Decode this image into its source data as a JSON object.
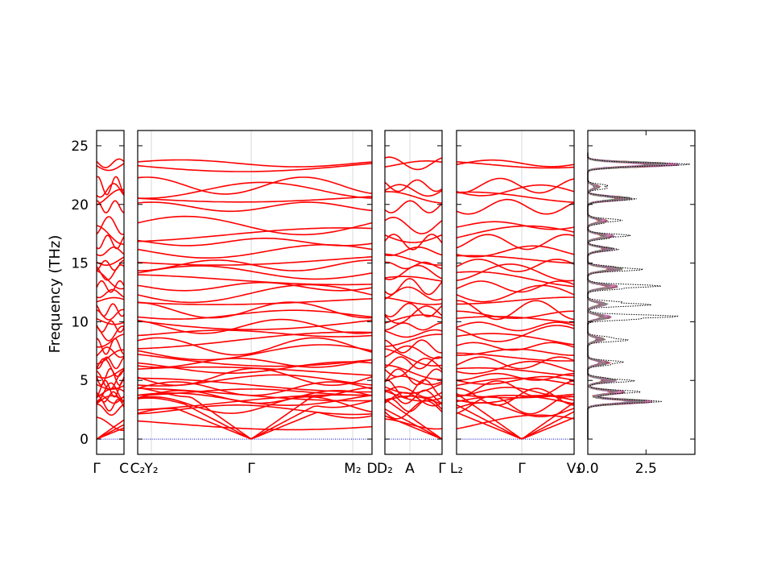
{
  "chart_data": {
    "type": "line",
    "title": "",
    "ylabel": "Frequency (THz)",
    "ylim": [
      -1.3,
      26.3
    ],
    "yticks": [
      0,
      5,
      10,
      15,
      20,
      25
    ],
    "band_color": "#ff0000",
    "zero_line_color": "#0000cc",
    "segments": [
      {
        "labels": [
          "Γ",
          "C"
        ],
        "path_from": "Γ",
        "path_to": "C"
      },
      {
        "labels": [
          "C₂",
          "Y₂",
          "Γ",
          "M₂",
          "D"
        ],
        "path_from": "C₂",
        "path_to": "D"
      },
      {
        "labels": [
          "D₂",
          "A",
          "Γ"
        ],
        "path_from": "D₂",
        "path_to": "Γ"
      },
      {
        "labels": [
          "L₂",
          "Γ",
          "V₂"
        ],
        "path_from": "L₂",
        "path_to": "V₂"
      }
    ],
    "band_frequencies_at_gamma_thz": [
      0,
      0,
      0,
      1.3,
      2.5,
      2.9,
      3.1,
      3.4,
      3.6,
      3.8,
      4.0,
      4.3,
      4.6,
      5.0,
      5.3,
      5.7,
      6.1,
      6.5,
      7.0,
      7.4,
      7.9,
      8.4,
      9.0,
      9.6,
      10.1,
      10.6,
      11.0,
      11.8,
      12.4,
      13.0,
      13.6,
      14.2,
      14.8,
      15.3,
      16.0,
      16.8,
      17.4,
      18.2,
      19.8,
      20.6,
      21.2,
      21.6,
      23.4,
      23.5
    ],
    "dos": {
      "xlabel": "",
      "xticks": [
        "0.0",
        "2.5"
      ],
      "xlim": [
        0,
        4.6
      ],
      "total_color": "#000000",
      "partial_colors": [
        "#1f77b4",
        "#ff7f0e",
        "#2ca02c",
        "#d62728",
        "#9467bd",
        "#8c564b",
        "#e377c2",
        "#7f7f7f"
      ],
      "peaks": [
        {
          "freq": 3.2,
          "total": 3.2,
          "partial": 2.8
        },
        {
          "freq": 4.0,
          "total": 2.4,
          "partial": 1.6
        },
        {
          "freq": 5.0,
          "total": 2.1,
          "partial": 1.2
        },
        {
          "freq": 6.5,
          "total": 1.8,
          "partial": 0.9
        },
        {
          "freq": 8.5,
          "total": 2.0,
          "partial": 0.7
        },
        {
          "freq": 10.4,
          "total": 4.4,
          "partial": 1.0
        },
        {
          "freq": 11.5,
          "total": 3.0,
          "partial": 0.8
        },
        {
          "freq": 13.0,
          "total": 3.4,
          "partial": 1.3
        },
        {
          "freq": 14.5,
          "total": 2.6,
          "partial": 1.5
        },
        {
          "freq": 16.2,
          "total": 1.4,
          "partial": 1.1
        },
        {
          "freq": 17.3,
          "total": 2.0,
          "partial": 1.1
        },
        {
          "freq": 18.6,
          "total": 1.6,
          "partial": 0.8
        },
        {
          "freq": 20.5,
          "total": 2.2,
          "partial": 1.9
        },
        {
          "freq": 21.5,
          "total": 1.2,
          "partial": 0.5
        },
        {
          "freq": 23.4,
          "total": 4.5,
          "partial": 4.0
        }
      ]
    }
  }
}
